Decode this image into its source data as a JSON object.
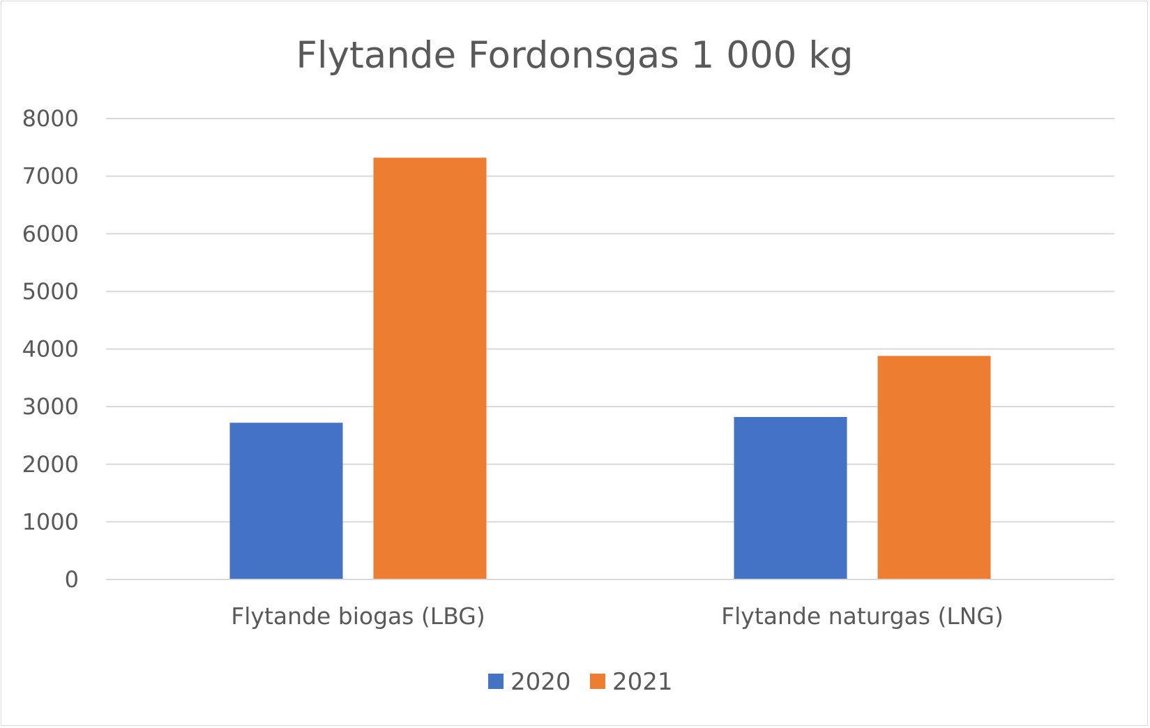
{
  "chart_data": {
    "type": "bar",
    "title": "Flytande Fordonsgas 1 000 kg",
    "xlabel": "",
    "ylabel": "",
    "categories": [
      "Flytande biogas (LBG)",
      "Flytande naturgas (LNG)"
    ],
    "series": [
      {
        "name": "2020",
        "values": [
          2720,
          2820
        ],
        "color": "#4472c4"
      },
      {
        "name": "2021",
        "values": [
          7320,
          3880
        ],
        "color": "#ed7d31"
      }
    ],
    "ylim": [
      0,
      8000
    ],
    "yticks": [
      0,
      1000,
      2000,
      3000,
      4000,
      5000,
      6000,
      7000,
      8000
    ],
    "grid": true,
    "legend_position": "bottom",
    "colors": {
      "gridline": "#d9d9d9",
      "text": "#595959",
      "border": "#d9d9d9"
    }
  }
}
